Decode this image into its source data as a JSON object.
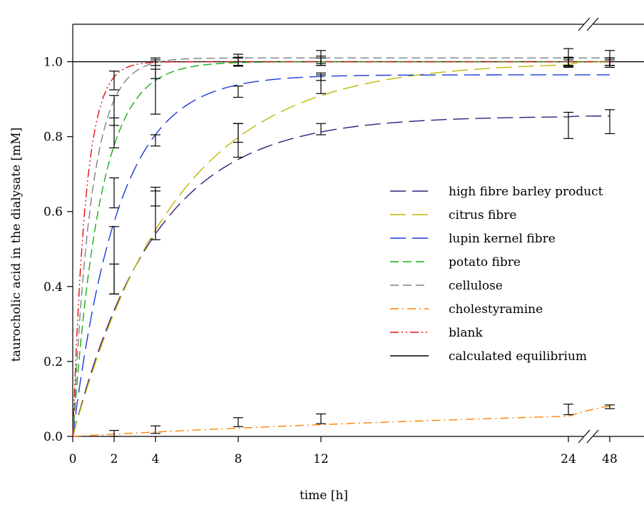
{
  "chart_data": {
    "type": "line",
    "title": "",
    "xlabel": "time [h]",
    "ylabel": "taurocholic acid in the dialysate [mM]",
    "xlim_display": [
      0,
      48
    ],
    "ylim": [
      0,
      1.1
    ],
    "axis_break": {
      "after_x": 12,
      "note": "broken x axis between 12 and 24 h and between 24 and 48 h"
    },
    "x_ticks": [
      "0",
      "2",
      "4",
      "8",
      "12",
      "24",
      "48"
    ],
    "x_tick_values": [
      0,
      2,
      4,
      8,
      12,
      24,
      48
    ],
    "y_ticks": [
      "0.0",
      "0.2",
      "0.4",
      "0.6",
      "0.8",
      "1.0"
    ],
    "y_tick_values": [
      0,
      0.2,
      0.4,
      0.6,
      0.8,
      1.0
    ],
    "grid": false,
    "legend_position": "right",
    "reference_line": {
      "name": "calculated equilibrium",
      "y": 1.0,
      "color": "#000000"
    },
    "series": [
      {
        "name": "high fibre barley product",
        "color": "#3a1a7a",
        "dash": "long-dash",
        "plateau": 0.855,
        "rate": 0.25,
        "points": [
          {
            "x": 2,
            "y": 0.42,
            "err": 0.04
          },
          {
            "x": 4,
            "y": 0.59,
            "err": 0.065
          },
          {
            "x": 8,
            "y": 0.79,
            "err": 0.045
          },
          {
            "x": 12,
            "y": 0.82,
            "err": 0.015
          },
          {
            "x": 24,
            "y": 0.83,
            "err": 0.035
          },
          {
            "x": 48,
            "y": 0.84,
            "err": 0.032
          }
        ]
      },
      {
        "name": "citrus fibre",
        "color": "#bdb800",
        "dash": "long-dash",
        "plateau": 1.0,
        "rate": 0.2,
        "points": [
          {
            "x": 2,
            "y": 0.47,
            "err": 0.09
          },
          {
            "x": 4,
            "y": 0.64,
            "err": 0.025
          },
          {
            "x": 8,
            "y": 0.81,
            "err": 0.025
          },
          {
            "x": 12,
            "y": 0.94,
            "err": 0.025
          },
          {
            "x": 24,
            "y": 1.0,
            "err": 0.01
          },
          {
            "x": 48,
            "y": 1.0,
            "err": 0.01
          }
        ]
      },
      {
        "name": "lupin kernel fibre",
        "color": "#1a3ad8",
        "dash": "long-dash",
        "plateau": 0.965,
        "rate": 0.45,
        "points": [
          {
            "x": 2,
            "y": 0.65,
            "err": 0.04
          },
          {
            "x": 4,
            "y": 0.79,
            "err": 0.015
          },
          {
            "x": 8,
            "y": 0.92,
            "err": 0.015
          },
          {
            "x": 12,
            "y": 0.96,
            "err": 0.01
          },
          {
            "x": 24,
            "y": 0.995,
            "err": 0.01
          },
          {
            "x": 48,
            "y": 0.995,
            "err": 0.01
          }
        ]
      },
      {
        "name": "potato fibre",
        "color": "#10b010",
        "dash": "medium-dash",
        "plateau": 1.0,
        "rate": 0.75,
        "points": [
          {
            "x": 2,
            "y": 0.81,
            "err": 0.04
          },
          {
            "x": 4,
            "y": 0.92,
            "err": 0.06
          },
          {
            "x": 8,
            "y": 1.0,
            "err": 0.012
          },
          {
            "x": 12,
            "y": 1.005,
            "err": 0.01
          },
          {
            "x": 24,
            "y": 1.0,
            "err": 0.012
          },
          {
            "x": 48,
            "y": 1.0,
            "err": 0.01
          }
        ]
      },
      {
        "name": "cellulose",
        "color": "#808080",
        "dash": "medium-dash",
        "plateau": 1.01,
        "rate": 1.1,
        "points": [
          {
            "x": 2,
            "y": 0.87,
            "err": 0.04
          },
          {
            "x": 4,
            "y": 0.98,
            "err": 0.025
          },
          {
            "x": 8,
            "y": 1.005,
            "err": 0.015
          },
          {
            "x": 12,
            "y": 1.01,
            "err": 0.02
          },
          {
            "x": 24,
            "y": 1.01,
            "err": 0.025
          },
          {
            "x": 48,
            "y": 1.01,
            "err": 0.02
          }
        ]
      },
      {
        "name": "cholestyramine",
        "color": "#ff8000",
        "dash": "dash-dot",
        "plateau": 0.11,
        "rate": 0.028,
        "points": [
          {
            "x": 2,
            "y": 0.008,
            "err": 0.008
          },
          {
            "x": 4,
            "y": 0.018,
            "err": 0.01
          },
          {
            "x": 8,
            "y": 0.038,
            "err": 0.012
          },
          {
            "x": 12,
            "y": 0.047,
            "err": 0.013
          },
          {
            "x": 24,
            "y": 0.072,
            "err": 0.014
          },
          {
            "x": 48,
            "y": 0.079,
            "err": 0.005
          }
        ]
      },
      {
        "name": "blank",
        "color": "#e01010",
        "dash": "dash-dot-dot",
        "plateau": 1.0,
        "rate": 1.6,
        "points": [
          {
            "x": 2,
            "y": 0.95,
            "err": 0.025
          },
          {
            "x": 4,
            "y": 1.0,
            "err": 0.01
          },
          {
            "x": 8,
            "y": 1.0,
            "err": 0.01
          },
          {
            "x": 12,
            "y": 1.0,
            "err": 0.01
          },
          {
            "x": 24,
            "y": 1.0,
            "err": 0.01
          },
          {
            "x": 48,
            "y": 1.0,
            "err": 0.01
          }
        ]
      }
    ]
  }
}
